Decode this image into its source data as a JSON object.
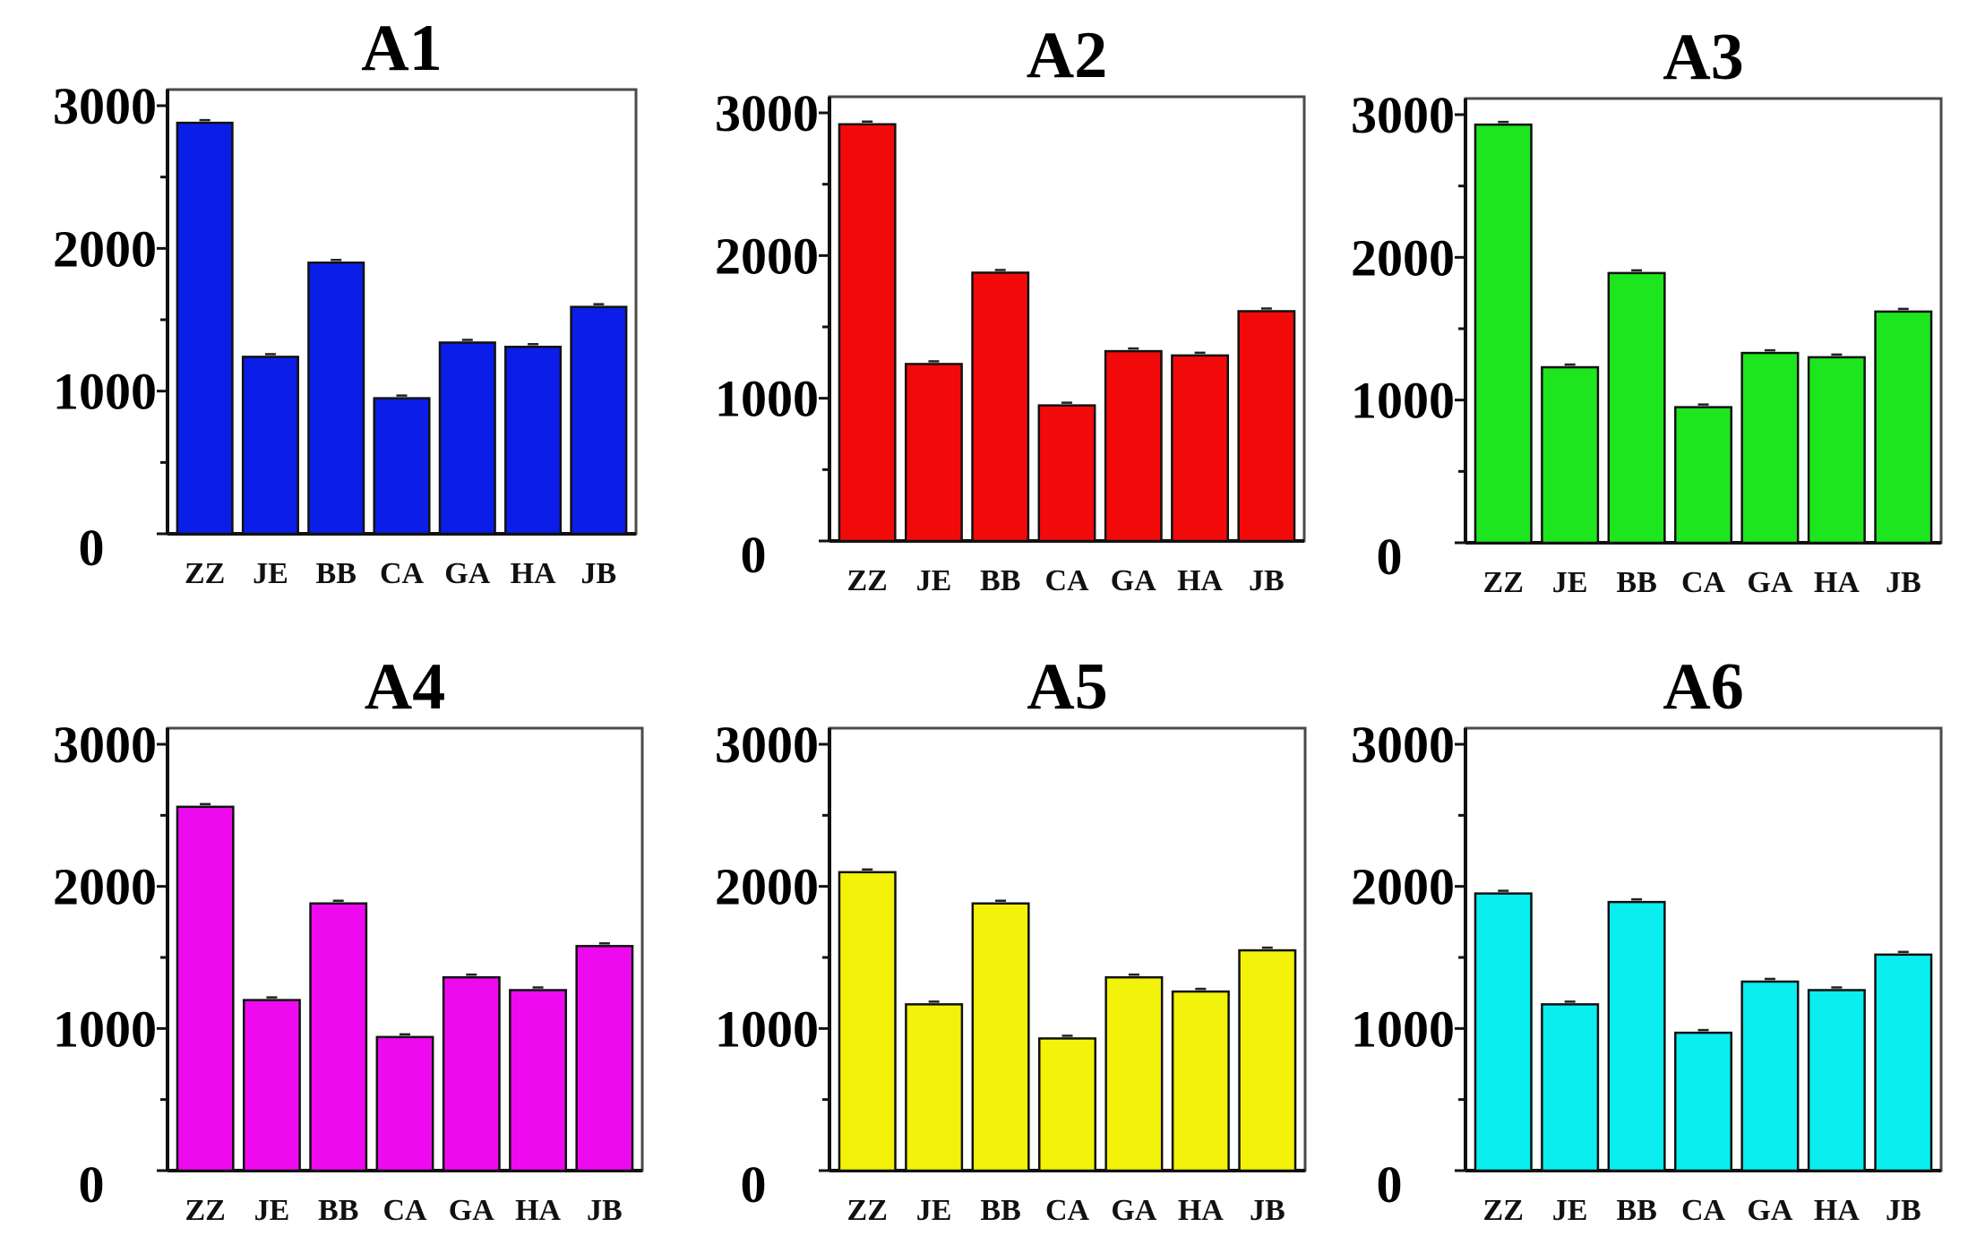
{
  "chart_data": [
    {
      "type": "bar",
      "title": "A1",
      "color": "#0a1ee8",
      "categories": [
        "ZZ",
        "JE",
        "BB",
        "CA",
        "GA",
        "HA",
        "JB"
      ],
      "values": [
        2880,
        1240,
        1900,
        950,
        1340,
        1310,
        1590
      ],
      "ylim": [
        0,
        3000
      ],
      "yticks": [
        "0",
        "1000",
        "2000",
        "3000"
      ],
      "xlabel": "",
      "ylabel": ""
    },
    {
      "type": "bar",
      "title": "A2",
      "color": "#f20a0a",
      "categories": [
        "ZZ",
        "JE",
        "BB",
        "CA",
        "GA",
        "HA",
        "JB"
      ],
      "values": [
        2920,
        1240,
        1880,
        950,
        1330,
        1300,
        1610
      ],
      "ylim": [
        0,
        3000
      ],
      "yticks": [
        "0",
        "1000",
        "2000",
        "3000"
      ],
      "xlabel": "",
      "ylabel": ""
    },
    {
      "type": "bar",
      "title": "A3",
      "color": "#1ee61e",
      "categories": [
        "ZZ",
        "JE",
        "BB",
        "CA",
        "GA",
        "HA",
        "JB"
      ],
      "values": [
        2930,
        1230,
        1890,
        950,
        1330,
        1300,
        1620
      ],
      "ylim": [
        0,
        3000
      ],
      "yticks": [
        "0",
        "1000",
        "2000",
        "3000"
      ],
      "xlabel": "",
      "ylabel": ""
    },
    {
      "type": "bar",
      "title": "A4",
      "color": "#ee0aee",
      "categories": [
        "ZZ",
        "JE",
        "BB",
        "CA",
        "GA",
        "HA",
        "JB"
      ],
      "values": [
        2560,
        1200,
        1880,
        940,
        1360,
        1270,
        1580
      ],
      "ylim": [
        0,
        3000
      ],
      "yticks": [
        "0",
        "1000",
        "2000",
        "3000"
      ],
      "xlabel": "",
      "ylabel": ""
    },
    {
      "type": "bar",
      "title": "A5",
      "color": "#f2f20a",
      "categories": [
        "ZZ",
        "JE",
        "BB",
        "CA",
        "GA",
        "HA",
        "JB"
      ],
      "values": [
        2100,
        1170,
        1880,
        930,
        1360,
        1260,
        1550
      ],
      "ylim": [
        0,
        3000
      ],
      "yticks": [
        "0",
        "1000",
        "2000",
        "3000"
      ],
      "xlabel": "",
      "ylabel": ""
    },
    {
      "type": "bar",
      "title": "A6",
      "color": "#0aeef0",
      "categories": [
        "ZZ",
        "JE",
        "BB",
        "CA",
        "GA",
        "HA",
        "JB"
      ],
      "values": [
        1950,
        1170,
        1890,
        970,
        1330,
        1270,
        1520
      ],
      "ylim": [
        0,
        3000
      ],
      "yticks": [
        "0",
        "1000",
        "2000",
        "3000"
      ],
      "xlabel": "",
      "ylabel": ""
    }
  ]
}
